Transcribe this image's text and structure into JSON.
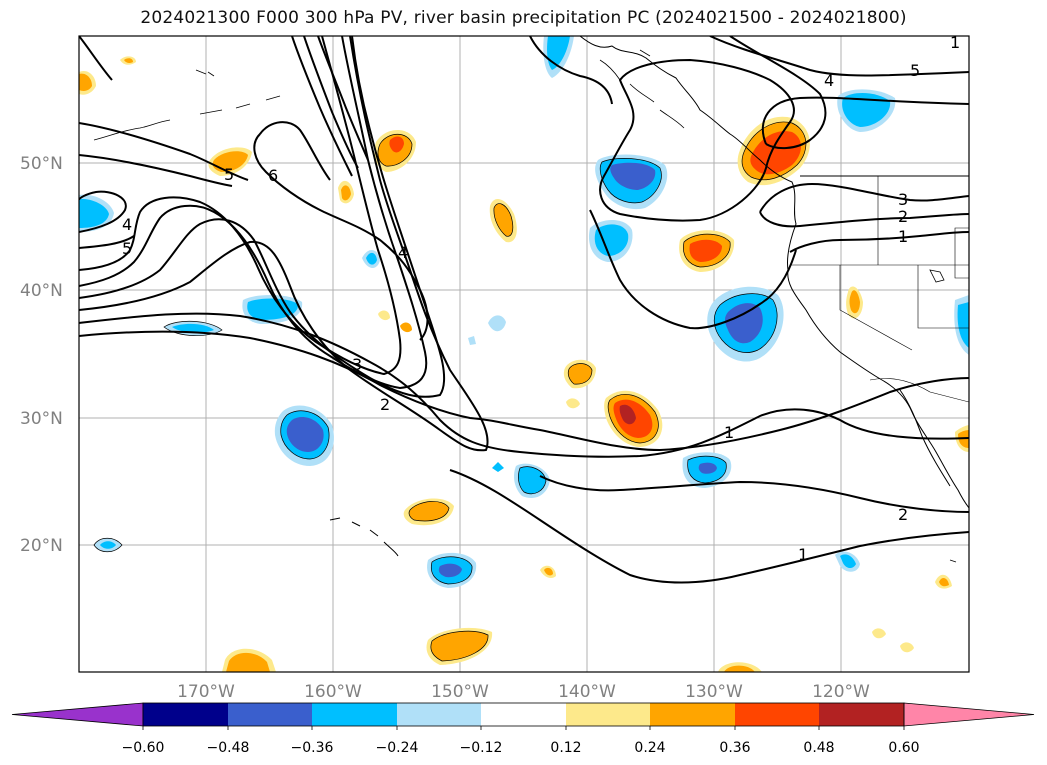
{
  "title": "2024021300 F000 300 hPa PV, river basin precipitation PC (2024021500 - 2024021800)",
  "map": {
    "lon_ticks": [
      "170°W",
      "160°W",
      "150°W",
      "140°W",
      "130°W",
      "120°W"
    ],
    "lat_ticks": [
      "50°N",
      "40°N",
      "30°N",
      "20°N"
    ],
    "grid": true,
    "contour_labels": [
      "6",
      "5",
      "5",
      "4",
      "4",
      "4",
      "3",
      "3",
      "2",
      "2",
      "2",
      "1",
      "1",
      "1",
      "1",
      "5",
      "4"
    ]
  },
  "colorbar": {
    "tick_labels": [
      "−0.60",
      "−0.48",
      "−0.36",
      "−0.24",
      "−0.12",
      "0.12",
      "0.24",
      "0.36",
      "0.48",
      "0.60"
    ],
    "colors": [
      "#9932cc",
      "#00008b",
      "#3a5fcd",
      "#00bfff",
      "#b0e0f8",
      "#ffffff",
      "#fde98b",
      "#ffa500",
      "#ff4500",
      "#b22222",
      "#ff85a8"
    ]
  },
  "colors": {
    "pos_low": "#fde98b",
    "pos_mid": "#ffa500",
    "pos_high": "#ff4500",
    "neg_low": "#b0e0f8",
    "neg_mid": "#00bfff",
    "neg_high": "#3a5fcd",
    "grid": "#b0b0b0",
    "contour": "#000000"
  }
}
